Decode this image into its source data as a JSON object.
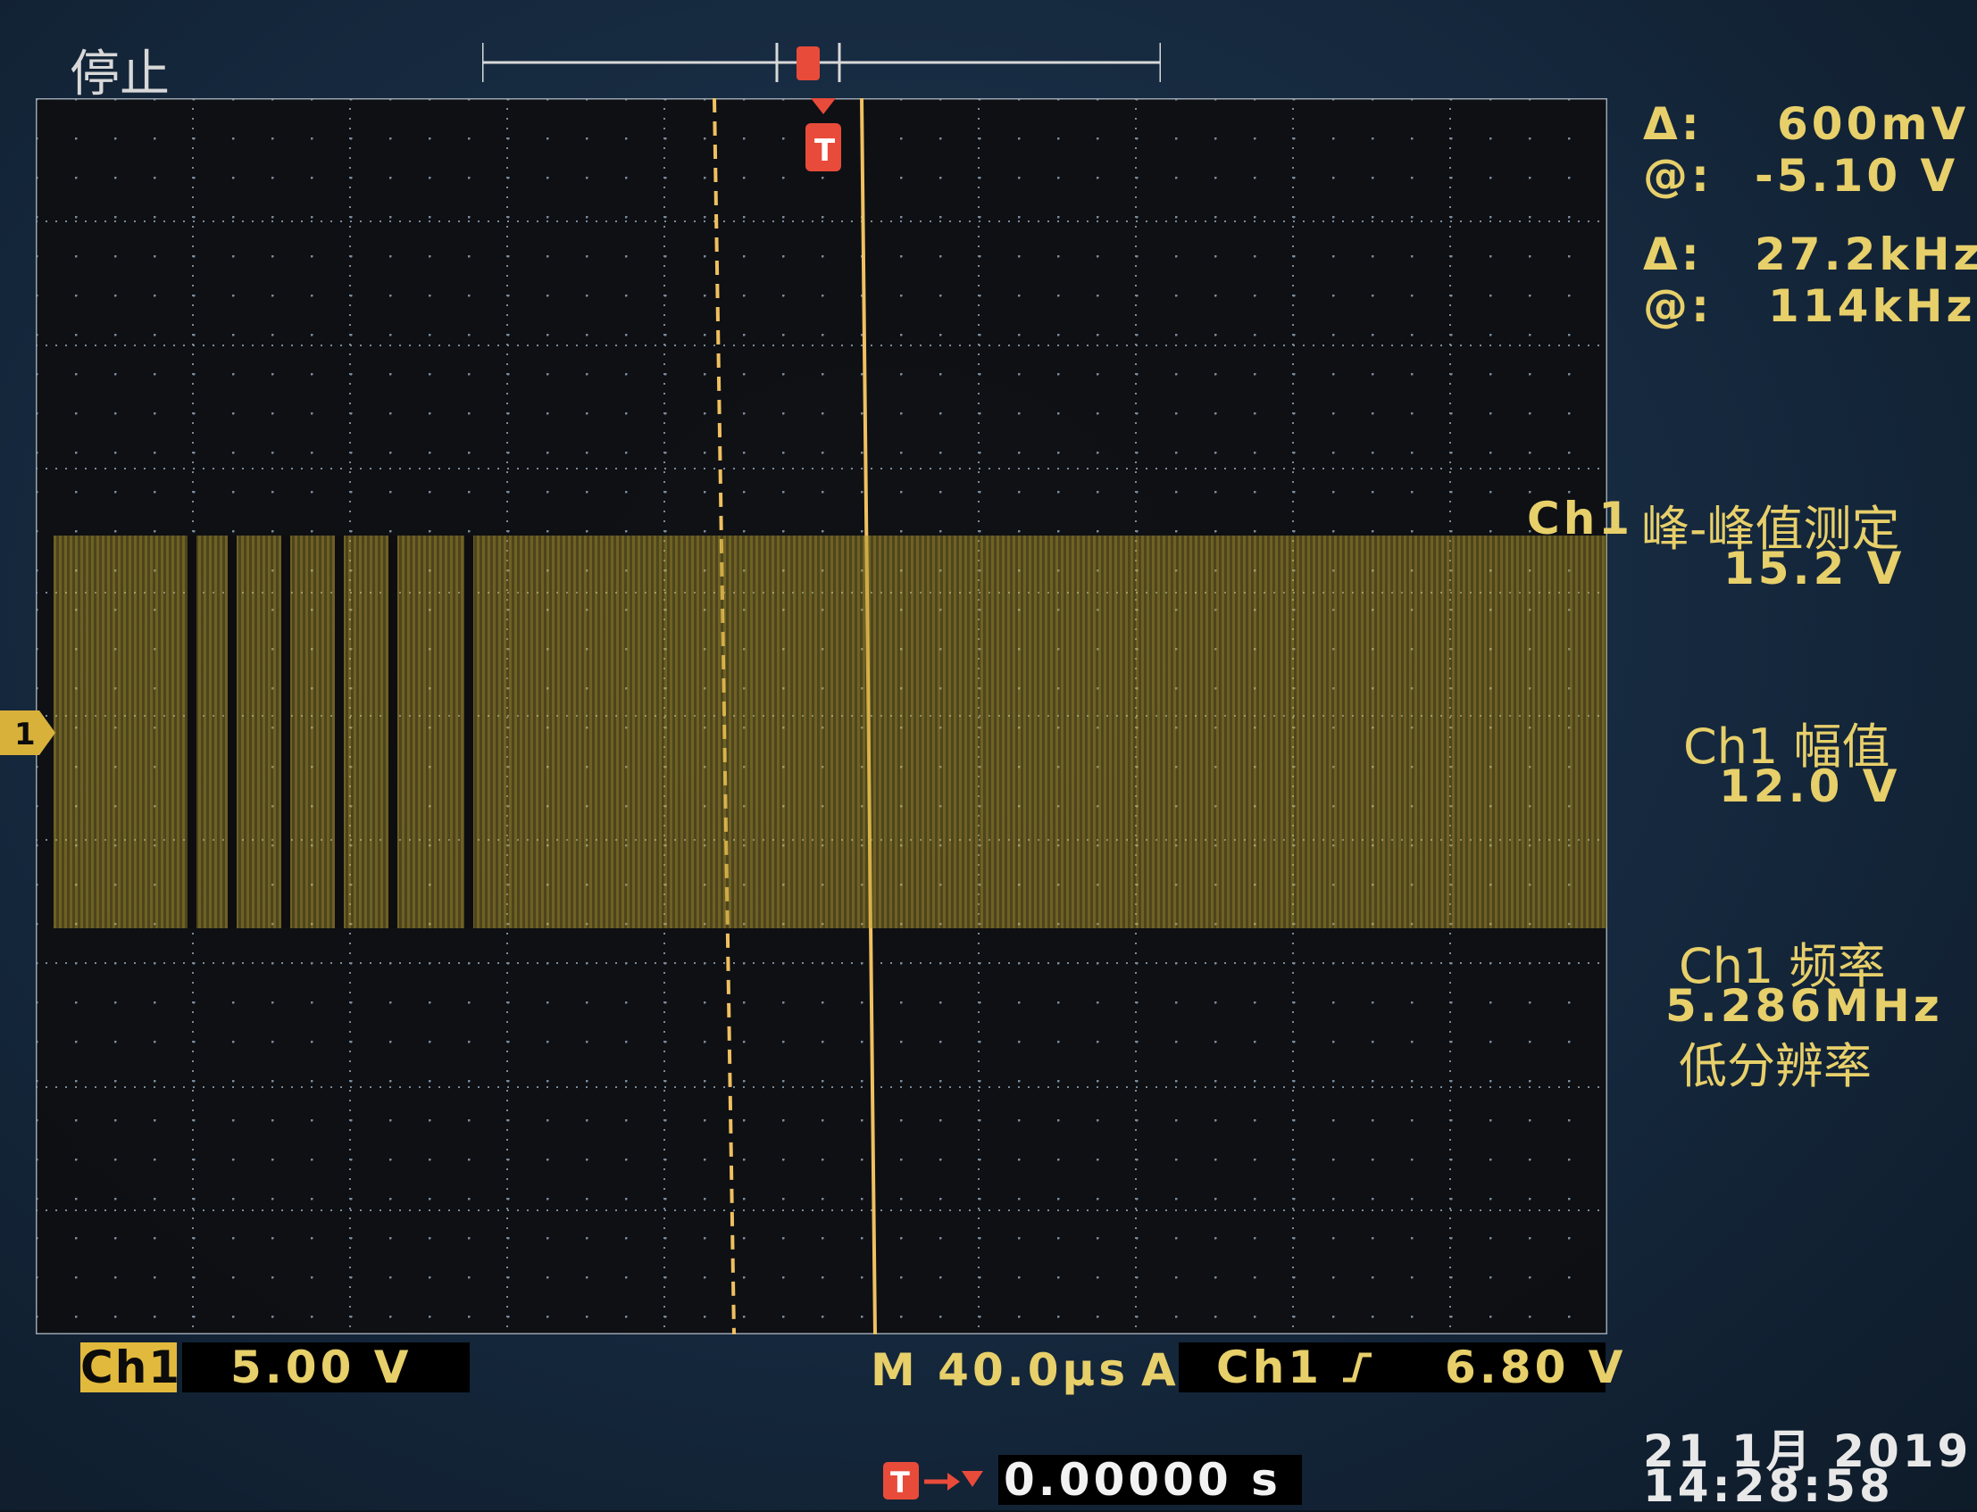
{
  "status": {
    "label": "停止"
  },
  "cursor_readout": {
    "voltage_delta_label": "Δ:",
    "voltage_delta": "600mV",
    "voltage_at_label": "@:",
    "voltage_at": "-5.10 V",
    "freq_delta_label": "Δ:",
    "freq_delta": "27.2kHz",
    "freq_at_label": "@:",
    "freq_at": "114kHz"
  },
  "measurements": {
    "m1_channel": "Ch1",
    "m1_name": "峰-峰值测定",
    "m1_value": "15.2 V",
    "m2_title": "Ch1 幅值",
    "m2_value": "12.0 V",
    "m3_title": "Ch1 频率",
    "m3_value": "5.286MHz",
    "m3_note": "低分辨率"
  },
  "bottom_bar": {
    "channel_tag": "Ch1",
    "volts_per_div": "5.00 V",
    "timebase": "M 40.0µs",
    "trigger_mode": "A",
    "trigger_source": "Ch1",
    "trigger_slope": "rising",
    "trigger_level": "6.80 V",
    "trigger_position": "0.00000 s"
  },
  "datetime": {
    "date": "21 1月 2019",
    "time": "14:28:58"
  },
  "markers": {
    "channel_marker": "1",
    "trigger_marker": "T"
  },
  "colors": {
    "trace": "#d8b13a",
    "text": "#e7cf6a",
    "cursor": "#f0b04a",
    "trigger": "#e84b3a"
  }
}
